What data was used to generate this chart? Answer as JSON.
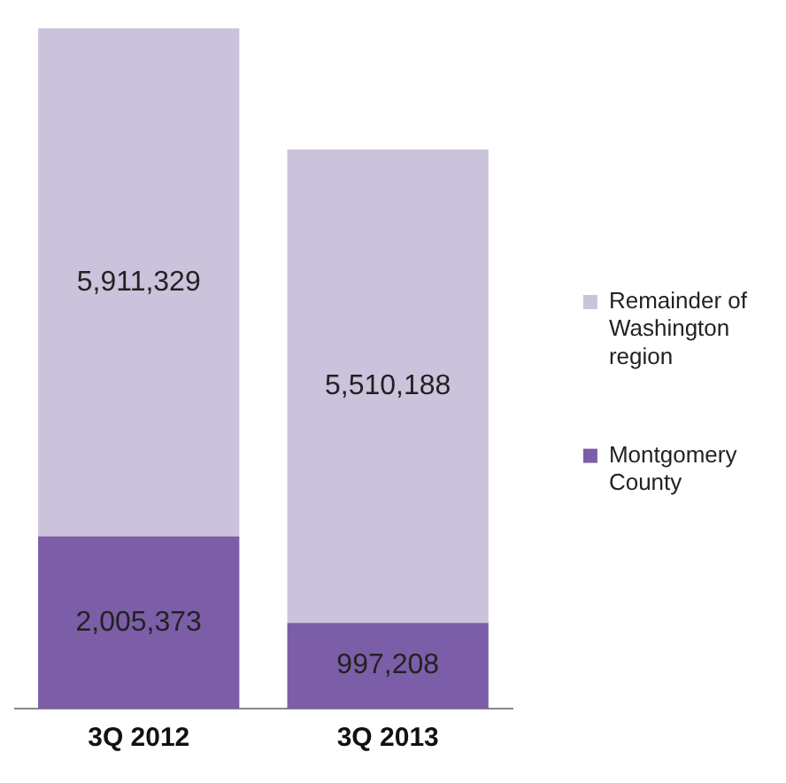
{
  "chart_data": {
    "type": "bar",
    "stacked": true,
    "categories": [
      "3Q 2012",
      "3Q 2013"
    ],
    "series": [
      {
        "name": "Montgomery County",
        "color": "#7b5ea7",
        "values": [
          2005373,
          997208
        ],
        "value_labels": [
          "2,005,373",
          "997,208"
        ]
      },
      {
        "name": "Remainder of Washington region",
        "color": "#cbc3dc",
        "values": [
          5911329,
          5510188
        ],
        "value_labels": [
          "5,911,329",
          "5,510,188"
        ]
      }
    ],
    "legend": "right",
    "grid": false
  }
}
